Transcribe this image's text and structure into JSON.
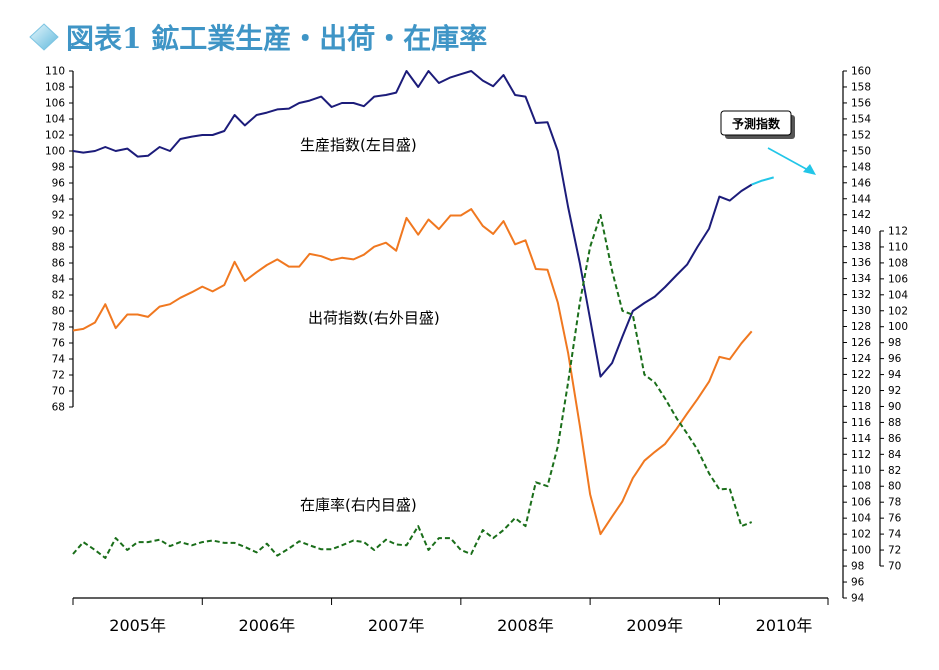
{
  "header": {
    "title": "図表1 鉱工業生産・出荷・在庫率",
    "accent_color": "#8fd0e8",
    "title_color": "#3f95c6"
  },
  "chart_data": {
    "type": "line",
    "x_labels": [
      "2005年",
      "2006年",
      "2007年",
      "2008年",
      "2009年",
      "2010年"
    ],
    "x_range": [
      2005.0,
      2010.84
    ],
    "axes": {
      "left": {
        "ylim": [
          68,
          110
        ],
        "ticks": [
          68,
          70,
          72,
          74,
          76,
          78,
          80,
          82,
          84,
          86,
          88,
          90,
          92,
          94,
          96,
          98,
          100,
          102,
          104,
          106,
          108,
          110
        ]
      },
      "outer_right": {
        "ylim": [
          94,
          160
        ],
        "ticks": [
          94,
          96,
          98,
          100,
          102,
          104,
          106,
          108,
          110,
          112,
          114,
          116,
          118,
          120,
          122,
          124,
          126,
          128,
          130,
          132,
          134,
          136,
          138,
          140,
          142,
          144,
          146,
          148,
          150,
          152,
          154,
          156,
          158,
          160
        ]
      },
      "inner_right": {
        "ylim": [
          70,
          112
        ],
        "ticks": [
          70,
          72,
          74,
          76,
          78,
          80,
          82,
          84,
          86,
          88,
          90,
          92,
          94,
          96,
          98,
          100,
          102,
          104,
          106,
          108,
          110,
          112
        ]
      }
    },
    "grid": false,
    "series": [
      {
        "name": "生産指数(左目盛)",
        "axis": "left",
        "color": "#1c1c7a",
        "dash": "",
        "x": [
          2005.0,
          2005.08,
          2005.17,
          2005.25,
          2005.33,
          2005.42,
          2005.5,
          2005.58,
          2005.67,
          2005.75,
          2005.83,
          2005.92,
          2006.0,
          2006.08,
          2006.17,
          2006.25,
          2006.33,
          2006.42,
          2006.5,
          2006.58,
          2006.67,
          2006.75,
          2006.83,
          2006.92,
          2007.0,
          2007.08,
          2007.17,
          2007.25,
          2007.33,
          2007.42,
          2007.5,
          2007.58,
          2007.67,
          2007.75,
          2007.83,
          2007.92,
          2008.0,
          2008.08,
          2008.17,
          2008.25,
          2008.33,
          2008.42,
          2008.5,
          2008.58,
          2008.67,
          2008.75,
          2008.83,
          2008.92,
          2009.0,
          2009.08,
          2009.17,
          2009.25,
          2009.33,
          2009.42,
          2009.5,
          2009.58,
          2009.67,
          2009.75,
          2009.83,
          2009.92,
          2010.0,
          2010.08,
          2010.17,
          2010.25
        ],
        "values": [
          100.0,
          99.8,
          100.0,
          100.5,
          100.0,
          100.3,
          99.3,
          99.4,
          100.5,
          100.0,
          101.5,
          101.8,
          102.0,
          102.0,
          102.5,
          104.5,
          103.2,
          104.5,
          104.8,
          105.2,
          105.3,
          106.0,
          106.3,
          106.8,
          105.5,
          106.0,
          106.0,
          105.6,
          106.8,
          107.0,
          107.3,
          110.0,
          108.0,
          110.0,
          108.5,
          109.2,
          109.6,
          110.0,
          108.8,
          108.1,
          109.5,
          107.0,
          106.8,
          103.5,
          103.6,
          100.0,
          93.0,
          86.0,
          79.0,
          71.8,
          73.5,
          76.8,
          80.0,
          81.0,
          81.8,
          83.0,
          84.5,
          85.8,
          88.0,
          90.3,
          94.3,
          93.8,
          95.0,
          95.8
        ]
      },
      {
        "name": "予測指数",
        "axis": "left",
        "color": "#22c6e8",
        "dash": "",
        "x": [
          2010.25,
          2010.33,
          2010.42
        ],
        "values": [
          95.8,
          96.3,
          96.7
        ]
      },
      {
        "name": "出荷指数(右外目盛)",
        "axis": "outer_right",
        "color": "#f07820",
        "dash": "",
        "x": [
          2005.0,
          2005.08,
          2005.17,
          2005.25,
          2005.33,
          2005.42,
          2005.5,
          2005.58,
          2005.67,
          2005.75,
          2005.83,
          2005.92,
          2006.0,
          2006.08,
          2006.17,
          2006.25,
          2006.33,
          2006.42,
          2006.5,
          2006.58,
          2006.67,
          2006.75,
          2006.83,
          2006.92,
          2007.0,
          2007.08,
          2007.17,
          2007.25,
          2007.33,
          2007.42,
          2007.5,
          2007.58,
          2007.67,
          2007.75,
          2007.83,
          2007.92,
          2008.0,
          2008.08,
          2008.17,
          2008.25,
          2008.33,
          2008.42,
          2008.5,
          2008.58,
          2008.67,
          2008.75,
          2008.83,
          2008.92,
          2009.0,
          2009.08,
          2009.17,
          2009.25,
          2009.33,
          2009.42,
          2009.5,
          2009.58,
          2009.67,
          2009.75,
          2009.83,
          2009.92,
          2010.0,
          2010.08,
          2010.17,
          2010.25
        ],
        "values": [
          127.5,
          127.7,
          128.5,
          130.8,
          127.8,
          129.5,
          129.5,
          129.2,
          130.5,
          130.8,
          131.6,
          132.3,
          133.0,
          132.4,
          133.2,
          136.1,
          133.7,
          134.8,
          135.7,
          136.4,
          135.5,
          135.5,
          137.1,
          136.8,
          136.3,
          136.6,
          136.4,
          137.0,
          138.0,
          138.5,
          137.5,
          141.6,
          139.5,
          141.4,
          140.2,
          141.9,
          141.9,
          142.7,
          140.6,
          139.6,
          141.2,
          138.3,
          138.8,
          135.2,
          135.1,
          131.0,
          124.7,
          115.6,
          107.0,
          102.0,
          104.2,
          106.1,
          109.0,
          111.2,
          112.3,
          113.3,
          115.2,
          117.1,
          118.9,
          121.1,
          124.2,
          123.9,
          125.9,
          127.4
        ]
      },
      {
        "name": "在庫率(右内目盛)",
        "axis": "inner_right",
        "color": "#1a6e1a",
        "dash": "5,3",
        "x": [
          2005.0,
          2005.08,
          2005.17,
          2005.25,
          2005.33,
          2005.42,
          2005.5,
          2005.58,
          2005.67,
          2005.75,
          2005.83,
          2005.92,
          2006.0,
          2006.08,
          2006.17,
          2006.25,
          2006.33,
          2006.42,
          2006.5,
          2006.58,
          2006.67,
          2006.75,
          2006.83,
          2006.92,
          2007.0,
          2007.08,
          2007.17,
          2007.25,
          2007.33,
          2007.42,
          2007.5,
          2007.58,
          2007.67,
          2007.75,
          2007.83,
          2007.92,
          2008.0,
          2008.08,
          2008.17,
          2008.25,
          2008.33,
          2008.42,
          2008.5,
          2008.58,
          2008.67,
          2008.75,
          2008.83,
          2008.92,
          2009.0,
          2009.08,
          2009.17,
          2009.25,
          2009.33,
          2009.42,
          2009.5,
          2009.58,
          2009.67,
          2009.75,
          2009.83,
          2009.92,
          2010.0,
          2010.08,
          2010.17,
          2010.25
        ],
        "values": [
          71.5,
          73.0,
          72.0,
          71.0,
          73.5,
          72.0,
          73.0,
          73.0,
          73.3,
          72.5,
          73.0,
          72.6,
          73.0,
          73.2,
          72.9,
          72.9,
          72.4,
          71.7,
          72.8,
          71.3,
          72.2,
          73.1,
          72.6,
          72.1,
          72.1,
          72.6,
          73.2,
          73.0,
          72.0,
          73.3,
          72.7,
          72.6,
          75.0,
          72.0,
          73.5,
          73.5,
          72.0,
          71.5,
          74.5,
          73.5,
          74.5,
          76.0,
          75.0,
          80.5,
          80.0,
          85.0,
          93.0,
          103.0,
          110.0,
          114.0,
          107.0,
          102.0,
          101.5,
          94.0,
          93.0,
          91.0,
          88.5,
          86.6,
          84.6,
          81.6,
          79.6,
          79.7,
          75.0,
          75.5
        ]
      }
    ],
    "labels": [
      {
        "key": "production",
        "text": "生産指数(左目盛)"
      },
      {
        "key": "shipment",
        "text": "出荷指数(右外目盛)"
      },
      {
        "key": "inventory",
        "text": "在庫率(右内目盛)"
      },
      {
        "key": "forecast",
        "text": "予測指数"
      }
    ]
  }
}
